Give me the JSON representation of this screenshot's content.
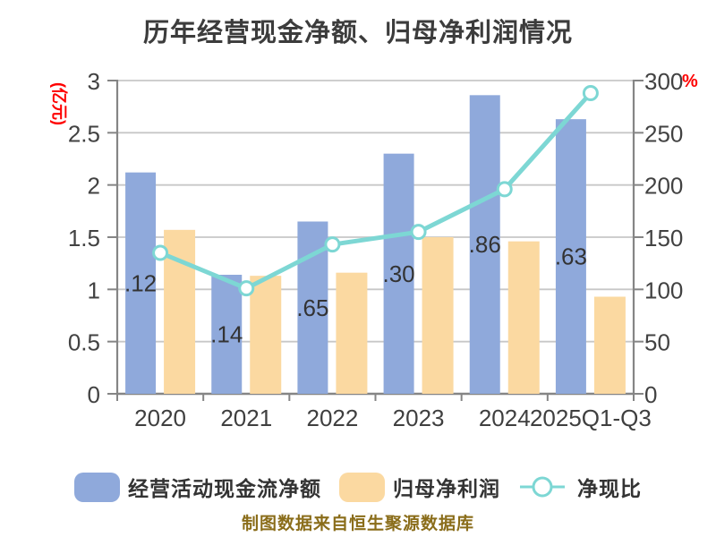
{
  "title": "历年经营现金净额、归母净利润情况",
  "footer": "制图数据来自恒生聚源数据库",
  "colors": {
    "bar_blue": "#8fa9db",
    "bar_yellow": "#fbd9a1",
    "line_teal": "#7dd7d4",
    "axis_red": "#fe0000",
    "footer_brown": "#8a6d1a",
    "grid_gray": "#c7c7c7",
    "axis_gray": "#858585",
    "text_dark": "#424242"
  },
  "chart_data": {
    "type": "bar",
    "subtype": "grouped-bars-with-line-overlay",
    "title": "历年经营现金净额、归母净利润情况",
    "categories": [
      "2020",
      "2021",
      "2022",
      "2023",
      "2024",
      "2025Q1-Q3"
    ],
    "series": [
      {
        "name": "经营活动现金流净额",
        "type": "bar",
        "y_axis": "left",
        "color": "#8fa9db",
        "values": [
          2.12,
          1.14,
          1.65,
          2.3,
          2.86,
          2.63
        ],
        "bar_labels_visible": [
          ".12",
          ".14",
          ".65",
          ".30",
          ".86",
          ".63"
        ]
      },
      {
        "name": "归母净利润",
        "type": "bar",
        "y_axis": "left",
        "color": "#fbd9a1",
        "values": [
          1.57,
          1.13,
          1.16,
          1.5,
          1.46,
          0.93
        ]
      },
      {
        "name": "净现比",
        "type": "line",
        "y_axis": "right",
        "color": "#7dd7d4",
        "marker": "circle-white-fill",
        "values": [
          135,
          101,
          143,
          155,
          196,
          288
        ]
      }
    ],
    "y_left": {
      "label": "(亿元)",
      "min": 0,
      "max": 3,
      "ticks": [
        "0",
        "0.5",
        "1",
        "1.5",
        "2",
        "2.5",
        "3"
      ]
    },
    "y_right": {
      "label": "%",
      "min": 0,
      "max": 300,
      "ticks": [
        "0",
        "50",
        "100",
        "150",
        "200",
        "250",
        "300"
      ]
    },
    "grid": true,
    "legend_position": "bottom"
  }
}
